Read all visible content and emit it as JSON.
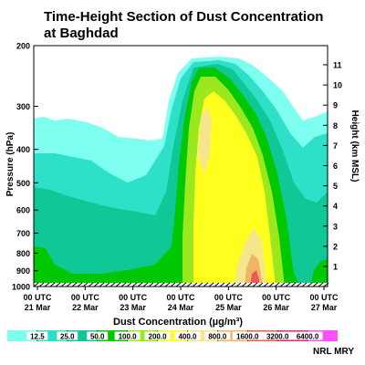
{
  "chart_data": {
    "type": "heatmap",
    "title": "Time-Height Section of Dust Concentration at Baghdad",
    "ylabel_left": "Pressure (hPa)",
    "ylabel_right": "Height (km MSL)",
    "xlabel": "Dust Concentration (µg/m³)",
    "y_left_ticks": [
      "200",
      "300",
      "400",
      "500",
      "600",
      "700",
      "800",
      "900",
      "1000"
    ],
    "y_left_range": [
      1000,
      200
    ],
    "y_right_ticks": [
      "1",
      "2",
      "3",
      "4",
      "5",
      "6",
      "7",
      "8",
      "9",
      "10",
      "11"
    ],
    "x_ticks": [
      {
        "time": "00 UTC",
        "date": "21 Mar"
      },
      {
        "time": "00 UTC",
        "date": "22 Mar"
      },
      {
        "time": "00 UTC",
        "date": "23 Mar"
      },
      {
        "time": "00 UTC",
        "date": "24 Mar"
      },
      {
        "time": "00 UTC",
        "date": "25 Mar"
      },
      {
        "time": "00 UTC",
        "date": "26 Mar"
      },
      {
        "time": "00 UTC",
        "date": "27 Mar"
      }
    ],
    "levels": [
      "12.5",
      "25.0",
      "50.0",
      "100.0",
      "200.0",
      "400.0",
      "800.0",
      "1600.0",
      "3200.0",
      "6400.0"
    ],
    "level_colors": [
      "#7ffff0",
      "#2ee0c8",
      "#10c896",
      "#00c800",
      "#9be81e",
      "#ffff1e",
      "#f5e68c",
      "#f0b466",
      "#eb5a5a",
      "#e1287d",
      "#ff50ff"
    ],
    "legend_placement": "bottom",
    "credit": "NRL MRY"
  }
}
